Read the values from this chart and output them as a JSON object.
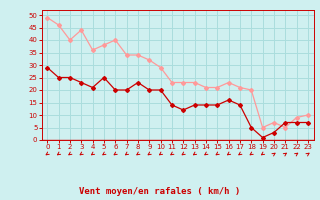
{
  "x": [
    0,
    1,
    2,
    3,
    4,
    5,
    6,
    7,
    8,
    9,
    10,
    11,
    12,
    13,
    14,
    15,
    16,
    17,
    18,
    19,
    20,
    21,
    22,
    23
  ],
  "wind_avg": [
    29,
    25,
    25,
    23,
    21,
    25,
    20,
    20,
    23,
    20,
    20,
    14,
    12,
    14,
    14,
    14,
    16,
    14,
    5,
    1,
    3,
    7,
    7,
    7
  ],
  "wind_gust": [
    49,
    46,
    40,
    44,
    36,
    38,
    40,
    34,
    34,
    32,
    29,
    23,
    23,
    23,
    21,
    21,
    23,
    21,
    20,
    5,
    7,
    5,
    9,
    10
  ],
  "arrow_angles_deg": [
    225,
    225,
    225,
    225,
    225,
    225,
    225,
    225,
    225,
    225,
    225,
    225,
    225,
    225,
    225,
    225,
    225,
    225,
    225,
    225,
    45,
    45,
    45,
    45
  ],
  "bg_color": "#cff0f0",
  "grid_color": "#aadddd",
  "line_avg_color": "#cc0000",
  "line_gust_color": "#ff9999",
  "xlabel": "Vent moyen/en rafales ( km/h )",
  "xlabel_color": "#cc0000",
  "tick_color": "#cc0000",
  "ylim": [
    0,
    52
  ],
  "yticks": [
    0,
    5,
    10,
    15,
    20,
    25,
    30,
    35,
    40,
    45,
    50
  ],
  "xticks": [
    0,
    1,
    2,
    3,
    4,
    5,
    6,
    7,
    8,
    9,
    10,
    11,
    12,
    13,
    14,
    15,
    16,
    17,
    18,
    19,
    20,
    21,
    22,
    23
  ]
}
